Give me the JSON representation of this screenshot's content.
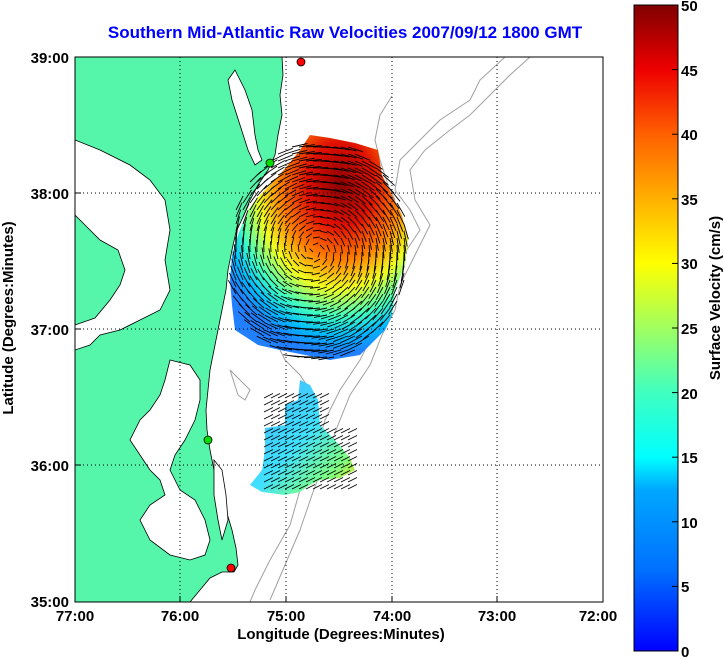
{
  "figure": {
    "title": "Southern Mid-Atlantic Raw Velocities 2007/09/12 1800 GMT",
    "xlabel": "Longitude (Degrees:Minutes)",
    "ylabel": "Latitude (Degrees:Minutes)",
    "x_ticks": [
      "77:00",
      "76:00",
      "75:00",
      "74:00",
      "73:00",
      "72:00"
    ],
    "y_ticks": [
      "39:00",
      "38:00",
      "37:00",
      "36:00",
      "35:00"
    ],
    "grid": "dotted"
  },
  "colorbar": {
    "label": "Surface Velocity (cm/s)",
    "ticks": [
      "50",
      "45",
      "40",
      "35",
      "30",
      "25",
      "20",
      "15",
      "10",
      "5",
      "0"
    ],
    "range": [
      0,
      50
    ],
    "colormap": "jet"
  },
  "map": {
    "land_color": "#55f5aa",
    "water_color": "#ffffff",
    "bathymetry_color": "#a0a0a0",
    "station_colors": {
      "active": "#00dd00",
      "inactive": "#ff0000"
    }
  },
  "chart_data": {
    "type": "map",
    "lon_range": [
      -77,
      -72
    ],
    "lat_range": [
      35,
      39
    ],
    "stations": [
      {
        "lon": -74.86,
        "lat": 38.97,
        "status": "inactive"
      },
      {
        "lon": -75.15,
        "lat": 38.23,
        "status": "active"
      },
      {
        "lon": -75.73,
        "lat": 36.19,
        "status": "active"
      },
      {
        "lon": -75.52,
        "lat": 35.27,
        "status": "inactive"
      }
    ],
    "velocity_range_cm_s": [
      0,
      50
    ]
  }
}
